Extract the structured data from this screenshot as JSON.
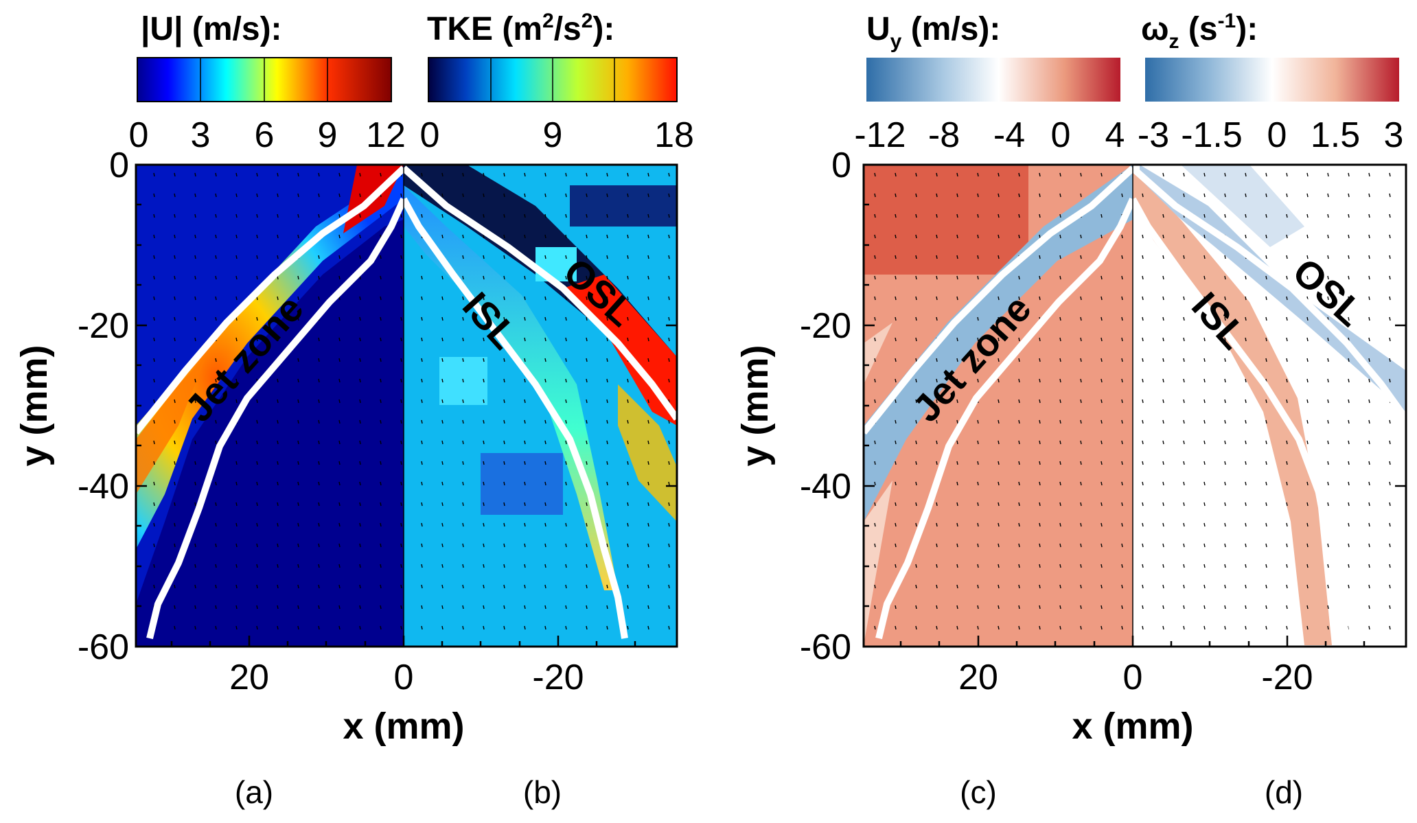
{
  "figure": {
    "colorbars": [
      {
        "id": "U",
        "title_main": "|U|",
        "title_rest": " (m/s):",
        "ticks": [
          "0",
          "3",
          "6",
          "9",
          "12"
        ],
        "scale": "jet"
      },
      {
        "id": "TKE",
        "title_main": "TKE (m",
        "title_sup1": "2",
        "title_mid": "/s",
        "title_sup2": "2",
        "title_end": "):",
        "ticks": [
          "0",
          "9",
          "18"
        ],
        "scale": "jet"
      },
      {
        "id": "Uy",
        "title_main": "U",
        "title_sub": "y",
        "title_rest": " (m/s):",
        "ticks": [
          "-12",
          "-8",
          "-4",
          "0",
          "4"
        ],
        "scale": "diverging"
      },
      {
        "id": "wz",
        "title_main": "ω",
        "title_sub": "z",
        "title_rest": " (s",
        "title_sup": "-1",
        "title_end": "):",
        "ticks": [
          "-3",
          "-1.5",
          "0",
          "1.5",
          "3"
        ],
        "scale": "diverging"
      }
    ],
    "panel_labels": [
      "(a)",
      "(b)",
      "(c)",
      "(d)"
    ],
    "zone_labels": {
      "jet": "Jet zone",
      "isl": "ISL",
      "osl": "OSL"
    },
    "colors": {
      "jet_dark": "#00008f",
      "jet_red": "#d81515",
      "div_blue": "#3b7bb5",
      "div_red": "#c8444a",
      "div_white": "#ffffff"
    }
  },
  "chart_data": [
    {
      "type": "heatmap",
      "panel": "(a) / (b)",
      "title": "",
      "left_field": "|U| (m/s)",
      "right_field": "TKE (m2/s2)",
      "xlabel": "x (mm)",
      "ylabel": "y (mm)",
      "x_ticks_left": [
        "20",
        "0"
      ],
      "x_ticks_right": [
        "-20"
      ],
      "y_ticks": [
        "0",
        "-20",
        "-40",
        "-60"
      ],
      "xlim_left": [
        35,
        0
      ],
      "xlim_right": [
        0,
        -35
      ],
      "ylim": [
        -60,
        0
      ],
      "U_range": [
        0,
        12
      ],
      "TKE_range": [
        0,
        18
      ]
    },
    {
      "type": "heatmap",
      "panel": "(c) / (d)",
      "title": "",
      "left_field": "Uy (m/s)",
      "right_field": "ωz (s-1)",
      "xlabel": "x (mm)",
      "ylabel": "y (mm)",
      "x_ticks_left": [
        "20",
        "0"
      ],
      "x_ticks_right": [
        "-20"
      ],
      "y_ticks": [
        "0",
        "-20",
        "-40",
        "-60"
      ],
      "xlim_left": [
        35,
        0
      ],
      "xlim_right": [
        0,
        -35
      ],
      "ylim": [
        -60,
        0
      ],
      "Uy_range": [
        -12,
        4
      ],
      "wz_range": [
        -3,
        3
      ]
    }
  ]
}
